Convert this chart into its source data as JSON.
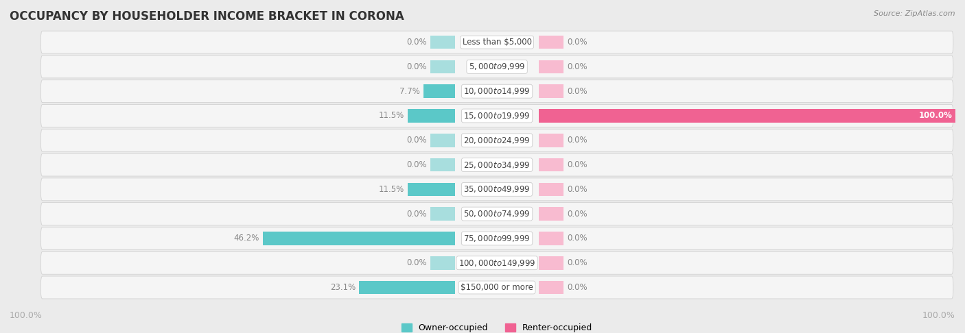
{
  "title": "OCCUPANCY BY HOUSEHOLDER INCOME BRACKET IN CORONA",
  "source": "Source: ZipAtlas.com",
  "categories": [
    "Less than $5,000",
    "$5,000 to $9,999",
    "$10,000 to $14,999",
    "$15,000 to $19,999",
    "$20,000 to $24,999",
    "$25,000 to $34,999",
    "$35,000 to $49,999",
    "$50,000 to $74,999",
    "$75,000 to $99,999",
    "$100,000 to $149,999",
    "$150,000 or more"
  ],
  "owner_values": [
    0.0,
    0.0,
    7.7,
    11.5,
    0.0,
    0.0,
    11.5,
    0.0,
    46.2,
    0.0,
    23.1
  ],
  "renter_values": [
    0.0,
    0.0,
    0.0,
    100.0,
    0.0,
    0.0,
    0.0,
    0.0,
    0.0,
    0.0,
    0.0
  ],
  "owner_color": "#5bc8c8",
  "owner_placeholder_color": "#a8dede",
  "renter_color": "#f06292",
  "renter_placeholder_color": "#f8bbd0",
  "label_color": "#888888",
  "bg_color": "#ebebeb",
  "bar_bg_color": "#f5f5f5",
  "title_color": "#333333",
  "legend_owner": "Owner-occupied",
  "legend_renter": "Renter-occupied",
  "axis_label_left": "100.0%",
  "axis_label_right": "100.0%",
  "max_val": 100.0,
  "placeholder_val": 6.0,
  "bar_height": 0.55,
  "label_zone": 20
}
